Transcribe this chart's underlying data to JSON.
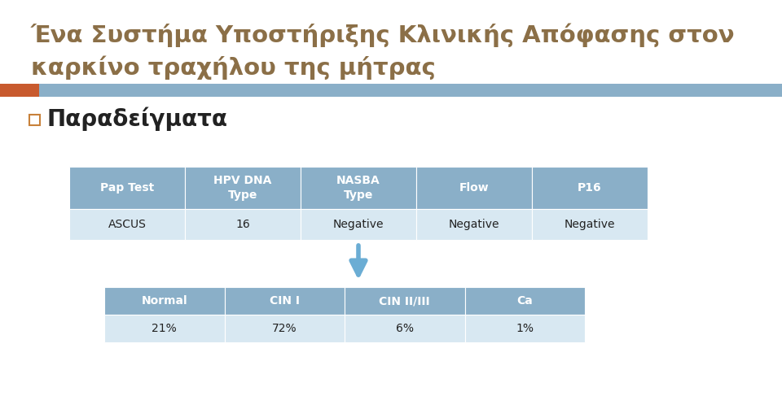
{
  "title_line1": "Ένα Συστήμα Υποστήριξης Κλινικής Απόφασης στον",
  "title_line2": "καρκίνο τραχήλου της μήτρας",
  "title_color": "#8b6f47",
  "subtitle": "Παραδείγματα",
  "subtitle_color": "#222222",
  "bg_color": "#ffffff",
  "header_bar_orange": "#c85a2e",
  "header_bar_blue": "#8aafc8",
  "table1_header_bg": "#8aafc8",
  "table1_row_bg": "#d8e8f2",
  "table1_header_color": "#ffffff",
  "table1_row_color": "#222222",
  "table1_headers": [
    "Pap Test",
    "HPV DNA\nType",
    "NASBA\nType",
    "Flow",
    "P16"
  ],
  "table1_row": [
    "ASCUS",
    "16",
    "Negative",
    "Negative",
    "Negative"
  ],
  "table2_header_bg": "#8aafc8",
  "table2_row_bg": "#d8e8f2",
  "table2_header_color": "#ffffff",
  "table2_row_color": "#222222",
  "table2_headers": [
    "Normal",
    "CIN I",
    "CIN II/III",
    "Ca"
  ],
  "table2_row": [
    "21%",
    "72%",
    "6%",
    "1%"
  ],
  "arrow_color": "#6badd4",
  "checkbox_color": "#c8813a",
  "title_fontsize": 21,
  "subtitle_fontsize": 20,
  "table_fontsize": 10
}
